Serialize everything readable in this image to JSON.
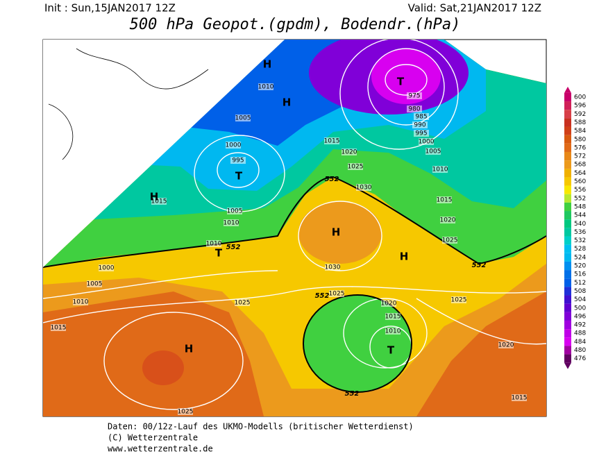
{
  "header": {
    "init": "Init : Sun,15JAN2017 12Z",
    "valid": "Valid: Sat,21JAN2017 12Z",
    "title": "500 hPa Geopot.(gpdm), Bodendr.(hPa)"
  },
  "map": {
    "pressure_labels": [
      1010,
      1005,
      1000,
      995,
      1015,
      1005,
      1010,
      1010,
      1000,
      1005,
      1010,
      1015,
      1025,
      1025,
      1015,
      1020,
      1025,
      1030,
      1030,
      1025,
      1020,
      1015,
      1010,
      975,
      980,
      985,
      990,
      995,
      1000,
      1005,
      1010,
      1015,
      1020,
      1025,
      1025,
      1020,
      1015
    ],
    "geopotential_labels": [
      552,
      552,
      552,
      552,
      552
    ],
    "centers": [
      "H",
      "H",
      "T",
      "H",
      "T",
      "H",
      "H",
      "T",
      "T",
      "H"
    ]
  },
  "legend": {
    "levels": [
      600,
      596,
      592,
      588,
      584,
      580,
      576,
      572,
      568,
      564,
      560,
      556,
      552,
      548,
      544,
      540,
      536,
      532,
      528,
      524,
      520,
      516,
      512,
      508,
      504,
      500,
      496,
      492,
      488,
      484,
      480,
      476
    ],
    "colors": [
      "#c8006a",
      "#d02058",
      "#d84048",
      "#c83020",
      "#d04018",
      "#d85a10",
      "#e06a18",
      "#e88818",
      "#ec9a1c",
      "#f0b000",
      "#f6c800",
      "#f8e800",
      "#b8e830",
      "#40d040",
      "#20c860",
      "#00c880",
      "#00c8a0",
      "#00d0c8",
      "#00c0f0",
      "#00b8f0",
      "#0090f0",
      "#0070e8",
      "#0060e8",
      "#2030d8",
      "#4010d0",
      "#6000d0",
      "#8000d8",
      "#a000e0",
      "#c000e8",
      "#d800f0",
      "#a000a0",
      "#600060"
    ]
  },
  "footer": [
    "Daten: 00/12z-Lauf des UKMO-Modells (britischer Wetterdienst)",
    "(C) Wetterzentrale",
    "www.wetterzentrale.de"
  ]
}
